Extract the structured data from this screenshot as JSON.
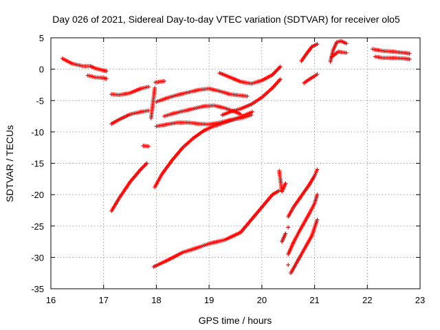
{
  "chart_data": {
    "type": "scatter",
    "title": "Day 026 of 2021, Sidereal Day-to-day VTEC variation (SDTVAR) for receiver olo5",
    "xlabel": "GPS time / hours",
    "ylabel": "SDTVAR / TECUs",
    "xlim": [
      16,
      23
    ],
    "ylim": [
      -35,
      5
    ],
    "xticks": [
      "16",
      "17",
      "18",
      "19",
      "20",
      "21",
      "22",
      "23"
    ],
    "yticks": [
      "5",
      "0",
      "-5",
      "-10",
      "-15",
      "-20",
      "-25",
      "-30",
      "-35"
    ],
    "grid": true,
    "marker": "+",
    "color": "#ff0000",
    "series": [
      {
        "name": "arc1",
        "x": [
          16.22,
          16.4,
          16.6,
          16.75,
          16.82,
          16.95,
          17.05
        ],
        "y": [
          1.7,
          0.9,
          0.5,
          0.5,
          0.2,
          -0.1,
          -0.3
        ]
      },
      {
        "name": "arc2",
        "x": [
          16.7,
          16.85,
          17.0,
          17.05
        ],
        "y": [
          -1.0,
          -1.3,
          -1.4,
          -1.5
        ]
      },
      {
        "name": "arc3",
        "x": [
          17.15,
          17.3,
          17.5,
          17.7,
          17.85
        ],
        "y": [
          -4.0,
          -4.1,
          -3.8,
          -3.1,
          -2.8
        ]
      },
      {
        "name": "arc4",
        "x": [
          17.15,
          17.3,
          17.5,
          17.7,
          17.85
        ],
        "y": [
          -8.7,
          -8.0,
          -7.2,
          -6.8,
          -6.6
        ]
      },
      {
        "name": "arc5",
        "x": [
          17.15,
          17.3,
          17.5,
          17.7,
          17.82
        ],
        "y": [
          -22.6,
          -20.5,
          -18.0,
          -16.0,
          -15.0
        ]
      },
      {
        "name": "arc6",
        "x": [
          17.75,
          17.85
        ],
        "y": [
          -12.2,
          -12.3
        ]
      },
      {
        "name": "arc7",
        "x": [
          17.97,
          17.9
        ],
        "y": [
          -3.0,
          -7.8
        ]
      },
      {
        "name": "arc8",
        "x": [
          17.98,
          18.07,
          18.15
        ],
        "y": [
          -2.1,
          -2.0,
          -1.9
        ]
      },
      {
        "name": "arc9",
        "x": [
          18.0,
          18.2,
          18.4,
          18.6,
          18.8,
          19.0,
          19.2,
          19.4,
          19.6,
          19.72
        ],
        "y": [
          -5.2,
          -4.6,
          -4.1,
          -3.7,
          -3.3,
          -3.1,
          -3.5,
          -4.0,
          -4.2,
          -4.3
        ]
      },
      {
        "name": "arc10",
        "x": [
          18.0,
          18.2,
          18.4,
          18.6,
          18.8,
          19.0,
          19.2,
          19.4,
          19.6,
          19.8
        ],
        "y": [
          -9.1,
          -8.8,
          -8.5,
          -8.5,
          -8.7,
          -8.8,
          -8.5,
          -8.1,
          -7.8,
          -7.3
        ]
      },
      {
        "name": "arc11",
        "x": [
          17.97,
          18.1,
          18.3,
          18.5,
          18.7,
          18.9,
          19.05,
          19.3,
          19.6,
          19.82
        ],
        "y": [
          -18.8,
          -16.8,
          -14.5,
          -12.5,
          -11.0,
          -9.8,
          -9.2,
          -8.5,
          -7.6,
          -6.8
        ]
      },
      {
        "name": "arc12",
        "x": [
          18.15,
          18.3,
          18.5,
          18.7,
          18.9,
          19.1,
          19.3,
          19.5,
          19.6
        ],
        "y": [
          -7.5,
          -7.1,
          -6.7,
          -6.3,
          -5.9,
          -5.8,
          -6.2,
          -6.8,
          -7.2
        ]
      },
      {
        "name": "arc13",
        "x": [
          19.2,
          19.4,
          19.6,
          19.8,
          20.0,
          20.2,
          20.35
        ],
        "y": [
          -0.6,
          -1.3,
          -2.0,
          -2.3,
          -1.8,
          -0.9,
          0.4
        ]
      },
      {
        "name": "arc14",
        "x": [
          19.25,
          19.4,
          19.6,
          19.8,
          20.0,
          20.2,
          20.35
        ],
        "y": [
          -7.3,
          -6.8,
          -6.3,
          -5.6,
          -4.5,
          -3.0,
          -1.6
        ]
      },
      {
        "name": "arc15",
        "x": [
          17.95,
          18.2,
          18.5,
          18.8,
          19.0,
          19.3,
          19.6,
          19.8,
          20.0,
          20.2,
          20.32
        ],
        "y": [
          -31.5,
          -30.5,
          -29.2,
          -28.4,
          -27.8,
          -27.2,
          -26.0,
          -24.0,
          -22.0,
          -20.0,
          -19.4
        ]
      },
      {
        "name": "arc16",
        "x": [
          20.33,
          20.38,
          20.45
        ],
        "y": [
          -16.2,
          -19.5,
          -18.2
        ]
      },
      {
        "name": "arc17",
        "x": [
          20.38,
          20.45
        ],
        "y": [
          -27.5,
          -26.2
        ]
      },
      {
        "name": "arc18",
        "x": [
          20.5,
          20.6,
          20.7,
          20.8,
          20.9,
          21.0,
          21.05
        ],
        "y": [
          -23.5,
          -22.0,
          -20.8,
          -19.6,
          -18.4,
          -17.0,
          -16.0
        ]
      },
      {
        "name": "arc19",
        "x": [
          20.5,
          20.6,
          20.7,
          20.8,
          20.9,
          21.0,
          21.05
        ],
        "y": [
          -29.5,
          -27.6,
          -26.0,
          -24.5,
          -23.0,
          -21.4,
          -20.0
        ]
      },
      {
        "name": "arc20",
        "x": [
          20.55,
          20.65,
          20.75,
          20.85,
          20.95,
          21.05
        ],
        "y": [
          -32.5,
          -31.0,
          -29.5,
          -28.0,
          -26.5,
          -24.0
        ]
      },
      {
        "name": "arc21",
        "x": [
          20.5
        ],
        "y": [
          -31.2
        ]
      },
      {
        "name": "arc22",
        "x": [
          20.5
        ],
        "y": [
          -25.2
        ]
      },
      {
        "name": "arc23",
        "x": [
          20.75,
          20.85,
          20.95,
          21.05
        ],
        "y": [
          1.3,
          2.5,
          3.6,
          4.0
        ]
      },
      {
        "name": "arc24",
        "x": [
          20.8,
          20.9,
          21.0,
          21.05
        ],
        "y": [
          -2.2,
          -1.6,
          -1.1,
          -0.8
        ]
      },
      {
        "name": "arc25",
        "x": [
          21.3,
          21.35,
          21.42,
          21.5,
          21.6
        ],
        "y": [
          1.2,
          3.0,
          4.3,
          4.5,
          4.1
        ]
      },
      {
        "name": "arc26",
        "x": [
          21.33,
          21.45,
          21.6
        ],
        "y": [
          2.0,
          2.8,
          2.6
        ]
      },
      {
        "name": "arc27",
        "x": [
          22.1,
          22.3,
          22.5,
          22.7,
          22.8
        ],
        "y": [
          3.2,
          2.9,
          2.8,
          2.6,
          2.5
        ]
      },
      {
        "name": "arc28",
        "x": [
          22.15,
          22.3,
          22.5,
          22.7,
          22.8
        ],
        "y": [
          2.0,
          1.8,
          1.8,
          1.7,
          1.6
        ]
      }
    ]
  }
}
